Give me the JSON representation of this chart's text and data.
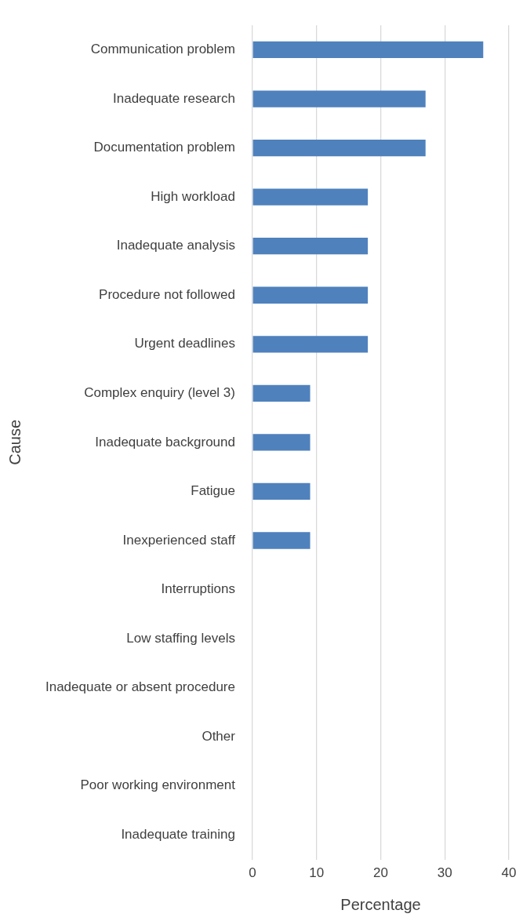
{
  "chart_data": {
    "type": "bar",
    "orientation": "horizontal",
    "xlabel": "Percentage",
    "ylabel": "Cause",
    "categories": [
      "Communication problem",
      "Inadequate research",
      "Documentation problem",
      "High workload",
      "Inadequate analysis",
      "Procedure not followed",
      "Urgent deadlines",
      "Complex enquiry (level 3)",
      "Inadequate background",
      "Fatigue",
      "Inexperienced staff",
      "Interruptions",
      "Low staffing levels",
      "Inadequate or absent procedure",
      "Other",
      "Poor working environment",
      "Inadequate training"
    ],
    "values": [
      36,
      27,
      27,
      18,
      18,
      18,
      18,
      9,
      9,
      9,
      9,
      0,
      0,
      0,
      0,
      0,
      0
    ],
    "color": "#4f81bd",
    "xlim": [
      0,
      40
    ],
    "xticks": [
      0,
      10,
      20,
      30,
      40
    ],
    "grid": "x"
  }
}
